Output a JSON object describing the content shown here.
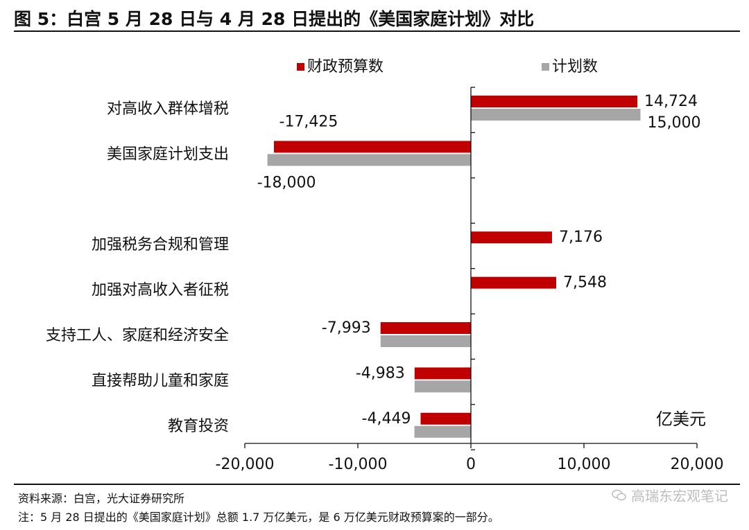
{
  "figure_title": "图 5：白宫 5 月 28 日与 4 月 28 日提出的《美国家庭计划》对比",
  "source": "资料来源：白宫，光大证券研究所",
  "note": "注：5 月 28 日提出的《美国家庭计划》总额 1.7 万亿美元，是 6 万亿美元财政预算案的一部分。",
  "watermark": "高瑞东宏观笔记",
  "watermark_icon": "wechat-icon",
  "chart_data": {
    "type": "bar",
    "orientation": "horizontal",
    "unit_label": "亿美元",
    "legend_position": "top",
    "grid": false,
    "xlim": [
      -20000,
      20000
    ],
    "x_ticks": [
      -20000,
      -10000,
      0,
      10000,
      20000
    ],
    "x_tick_labels": [
      "-20,000",
      "-10,000",
      "0",
      "10,000",
      "20,000"
    ],
    "categories": [
      "对高收入群体增税",
      "美国家庭计划支出",
      "加强税务合规和管理",
      "加强对高收入者征税",
      "支持工人、家庭和经济安全",
      "直接帮助儿童和家庭",
      "教育投资"
    ],
    "category_slots": [
      0,
      1,
      3,
      4,
      5,
      6,
      7
    ],
    "series": [
      {
        "name": "财政预算数",
        "color": "#c00000",
        "values": [
          14724,
          -17425,
          7176,
          7548,
          -7993,
          -4983,
          -4449
        ],
        "labels": [
          "14,724",
          "-17,425",
          "7,176",
          "7,548",
          "-7,993",
          "-4,983",
          "-4,449"
        ]
      },
      {
        "name": "计划数",
        "color": "#a6a6a6",
        "values": [
          15000,
          -18000,
          null,
          null,
          -7993,
          -4983,
          -5000
        ],
        "labels": [
          "15,000",
          "-18,000",
          "",
          "",
          "",
          "",
          ""
        ]
      }
    ]
  }
}
